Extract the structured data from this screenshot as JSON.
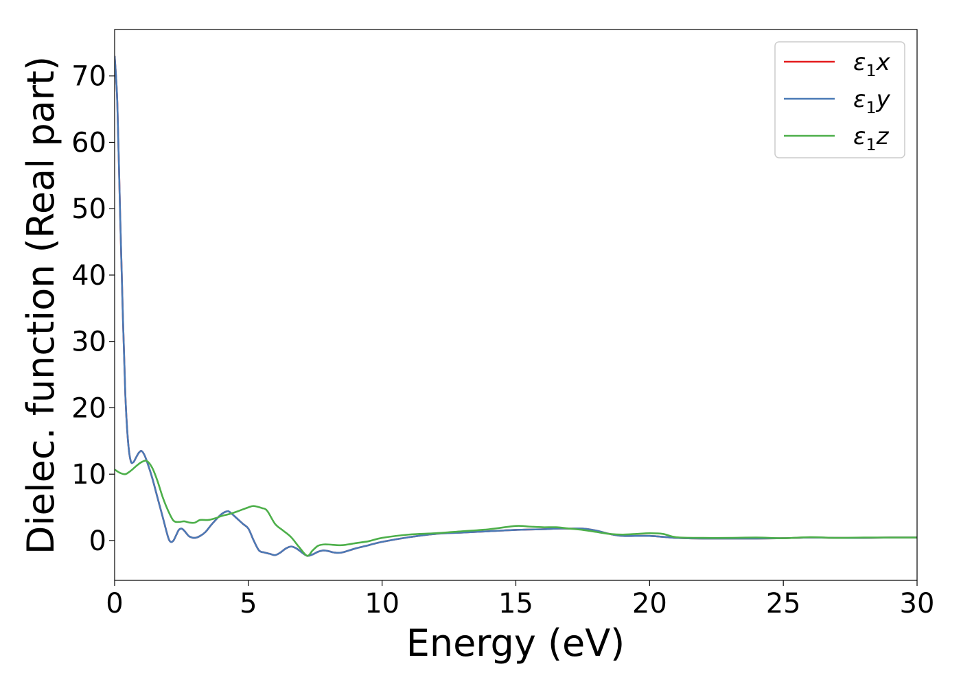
{
  "chart_data": {
    "type": "line",
    "title": "",
    "xlabel": "Energy (eV)",
    "ylabel": "Dielec. function (Real part)",
    "xlim": [
      0,
      30
    ],
    "ylim": [
      -6,
      77
    ],
    "xticks": [
      0,
      5,
      10,
      15,
      20,
      25,
      30
    ],
    "yticks": [
      0,
      10,
      20,
      30,
      40,
      50,
      60,
      70
    ],
    "grid": false,
    "legend_position": "top-right",
    "series": [
      {
        "name": "ε₁x",
        "legend": {
          "base": "ε",
          "sub": "1",
          "var": "x"
        },
        "color": "#e41a1c",
        "x": [
          0,
          0.1,
          0.2,
          0.3,
          0.4,
          0.5,
          0.6,
          0.7,
          0.8,
          0.9,
          1.0,
          1.1,
          1.2,
          1.4,
          1.6,
          1.8,
          2.0,
          2.1,
          2.2,
          2.3,
          2.4,
          2.5,
          2.6,
          2.7,
          2.8,
          3.0,
          3.2,
          3.4,
          3.6,
          3.8,
          4.0,
          4.2,
          4.3,
          4.5,
          4.8,
          5.0,
          5.2,
          5.4,
          5.6,
          5.8,
          6.0,
          6.2,
          6.4,
          6.6,
          6.8,
          7.0,
          7.2,
          7.4,
          7.6,
          7.8,
          8.0,
          8.2,
          8.5,
          9.0,
          9.5,
          10,
          11,
          12,
          13,
          14,
          15,
          16,
          16.5,
          17,
          17.5,
          18,
          18.5,
          19,
          20,
          21,
          22,
          23,
          24,
          25,
          26,
          27,
          28,
          29,
          30
        ],
        "y": [
          73,
          66,
          50,
          35,
          22,
          15,
          12,
          11.8,
          12.5,
          13.2,
          13.5,
          13,
          12,
          9.5,
          6.5,
          3.5,
          0.5,
          -0.2,
          0,
          0.8,
          1.6,
          1.8,
          1.5,
          1,
          0.6,
          0.4,
          0.7,
          1.3,
          2.3,
          3.2,
          4,
          4.4,
          4.3,
          3.6,
          2.5,
          1.8,
          0,
          -1.5,
          -1.8,
          -2,
          -2.2,
          -1.8,
          -1.2,
          -0.9,
          -1.2,
          -1.8,
          -2.3,
          -2.1,
          -1.7,
          -1.5,
          -1.6,
          -1.8,
          -1.8,
          -1.2,
          -0.7,
          -0.2,
          0.5,
          1,
          1.2,
          1.4,
          1.6,
          1.7,
          1.8,
          1.8,
          1.8,
          1.5,
          1,
          0.7,
          0.7,
          0.4,
          0.3,
          0.3,
          0.3,
          0.35,
          0.45,
          0.4,
          0.4,
          0.45,
          0.45
        ]
      },
      {
        "name": "ε₁y",
        "legend": {
          "base": "ε",
          "sub": "1",
          "var": "y"
        },
        "color": "#4a7ab6",
        "x": [
          0,
          0.1,
          0.2,
          0.3,
          0.4,
          0.5,
          0.6,
          0.7,
          0.8,
          0.9,
          1.0,
          1.1,
          1.2,
          1.4,
          1.6,
          1.8,
          2.0,
          2.1,
          2.2,
          2.3,
          2.4,
          2.5,
          2.6,
          2.7,
          2.8,
          3.0,
          3.2,
          3.4,
          3.6,
          3.8,
          4.0,
          4.2,
          4.3,
          4.5,
          4.8,
          5.0,
          5.2,
          5.4,
          5.6,
          5.8,
          6.0,
          6.2,
          6.4,
          6.6,
          6.8,
          7.0,
          7.2,
          7.4,
          7.6,
          7.8,
          8.0,
          8.2,
          8.5,
          9.0,
          9.5,
          10,
          11,
          12,
          13,
          14,
          15,
          16,
          16.5,
          17,
          17.5,
          18,
          18.5,
          19,
          20,
          21,
          22,
          23,
          24,
          25,
          26,
          27,
          28,
          29,
          30
        ],
        "y": [
          73,
          66,
          50,
          35,
          22,
          15,
          12,
          11.8,
          12.5,
          13.2,
          13.5,
          13,
          12,
          9.5,
          6.5,
          3.5,
          0.5,
          -0.2,
          0,
          0.8,
          1.6,
          1.8,
          1.5,
          1,
          0.6,
          0.4,
          0.7,
          1.3,
          2.3,
          3.2,
          4,
          4.4,
          4.3,
          3.6,
          2.5,
          1.8,
          0,
          -1.5,
          -1.8,
          -2,
          -2.2,
          -1.8,
          -1.2,
          -0.9,
          -1.2,
          -1.8,
          -2.3,
          -2.1,
          -1.7,
          -1.5,
          -1.6,
          -1.8,
          -1.8,
          -1.2,
          -0.7,
          -0.2,
          0.5,
          1,
          1.2,
          1.4,
          1.6,
          1.7,
          1.8,
          1.8,
          1.8,
          1.5,
          1,
          0.7,
          0.7,
          0.4,
          0.3,
          0.3,
          0.3,
          0.35,
          0.45,
          0.4,
          0.4,
          0.45,
          0.45
        ]
      },
      {
        "name": "ε₁z",
        "legend": {
          "base": "ε",
          "sub": "1",
          "var": "z"
        },
        "color": "#4daf4a",
        "x": [
          0,
          0.2,
          0.4,
          0.6,
          0.8,
          1.0,
          1.2,
          1.4,
          1.6,
          1.8,
          2.0,
          2.2,
          2.4,
          2.6,
          2.8,
          3.0,
          3.2,
          3.5,
          3.8,
          4.0,
          4.3,
          4.6,
          5.0,
          5.2,
          5.5,
          5.7,
          6.0,
          6.3,
          6.6,
          6.9,
          7.2,
          7.4,
          7.6,
          7.8,
          8.0,
          8.5,
          9.0,
          9.5,
          10,
          11,
          12,
          13,
          14,
          15,
          15.5,
          16,
          16.5,
          17,
          17.5,
          18,
          18.5,
          19,
          19.5,
          20,
          20.5,
          21,
          22,
          23,
          24,
          25,
          26,
          27,
          28,
          29,
          30
        ],
        "y": [
          10.7,
          10.2,
          10,
          10.5,
          11.2,
          11.8,
          12,
          11,
          9,
          6.5,
          4.5,
          3,
          2.8,
          2.9,
          2.7,
          2.7,
          3.1,
          3.1,
          3.4,
          3.7,
          4,
          4.4,
          5,
          5.2,
          4.9,
          4.5,
          2.5,
          1.5,
          0.5,
          -1,
          -2.3,
          -1.5,
          -0.8,
          -0.6,
          -0.6,
          -0.7,
          -0.4,
          -0.1,
          0.4,
          0.9,
          1.1,
          1.4,
          1.7,
          2.2,
          2.1,
          2,
          2,
          1.8,
          1.6,
          1.3,
          1,
          0.9,
          1,
          1.1,
          1,
          0.5,
          0.4,
          0.4,
          0.45,
          0.35,
          0.5,
          0.4,
          0.45,
          0.45,
          0.45
        ]
      }
    ]
  }
}
